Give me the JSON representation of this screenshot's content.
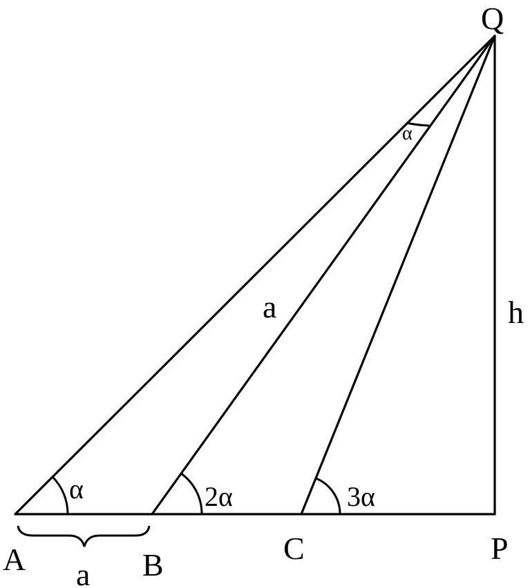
{
  "points": {
    "A": "A",
    "B": "B",
    "C": "C",
    "P": "P",
    "Q": "Q"
  },
  "lengths": {
    "ab": "a",
    "bq": "a",
    "height": "h"
  },
  "angles": {
    "at_a": "α",
    "at_b": "2α",
    "at_c": "3α",
    "at_q": "α"
  },
  "colors": {
    "stroke": "#000000",
    "background": "#ffffff"
  }
}
